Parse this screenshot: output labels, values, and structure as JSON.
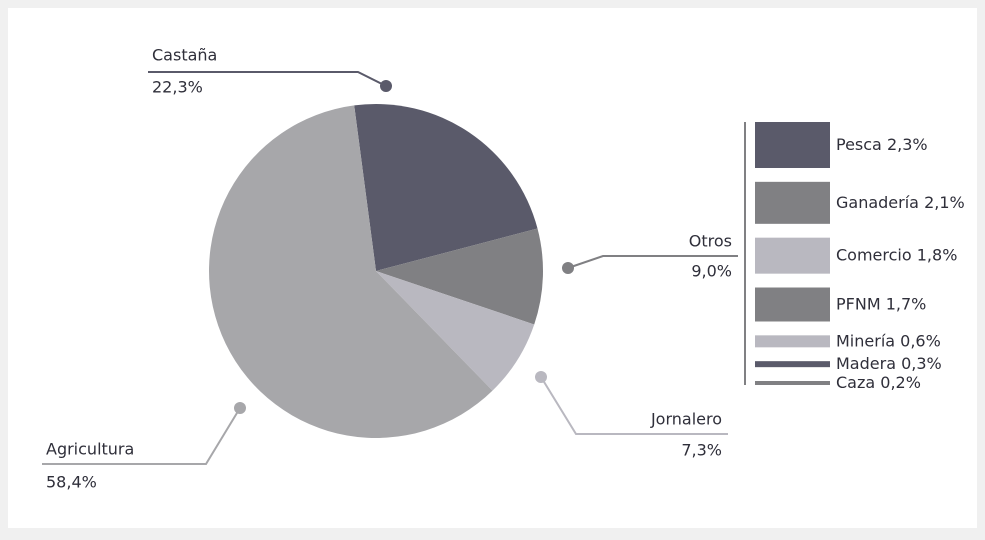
{
  "chart_data": {
    "type": "pie",
    "categories": [
      "Castaña",
      "Otros",
      "Jornalero",
      "Agricultura"
    ],
    "values": [
      22.3,
      9.0,
      7.3,
      58.4
    ],
    "value_labels": [
      "22,3%",
      "9,0%",
      "7,3%",
      "58,4%"
    ],
    "colors": [
      "#5a5a6a",
      "#808083",
      "#b9b8c0",
      "#a7a7aa"
    ],
    "breakdown": {
      "type": "bar",
      "categories": [
        "Pesca",
        "Ganadería",
        "Comercio",
        "PFNM",
        "Minería",
        "Madera",
        "Caza"
      ],
      "values": [
        2.3,
        2.1,
        1.8,
        1.7,
        0.6,
        0.3,
        0.2
      ],
      "value_labels": [
        "2,3%",
        "2,1%",
        "1,8%",
        "1,7%",
        "0,6%",
        "0,3%",
        "0,2%"
      ],
      "colors": [
        "#5a5a6a",
        "#808083",
        "#b9b8c0",
        "#808083",
        "#b9b8c0",
        "#5a5a6a",
        "#808083"
      ]
    }
  }
}
